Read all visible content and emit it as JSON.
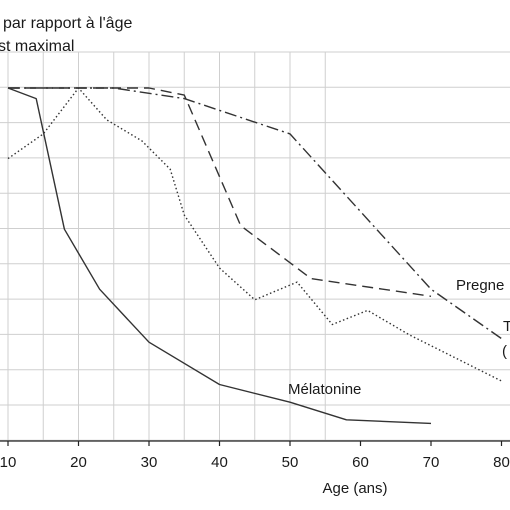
{
  "chart_data": {
    "type": "line",
    "title_lines": [
      "par rapport à l'âge",
      "st maximal"
    ],
    "xlabel": "Age (ans)",
    "xlim": [
      10,
      80
    ],
    "ylim": [
      0,
      100
    ],
    "x_ticks": [
      10,
      20,
      30,
      40,
      50,
      60,
      70,
      80
    ],
    "x_tick_labels": [
      "10",
      "20",
      "30",
      "40",
      "50",
      "60",
      "70",
      "80"
    ],
    "grid": true,
    "series": [
      {
        "name": "Mélatonine",
        "style": "solid",
        "color": "#333333",
        "x": [
          10,
          14,
          18,
          23,
          30,
          40,
          50,
          58,
          70
        ],
        "y": [
          100,
          97,
          60,
          43,
          28,
          16,
          11,
          6,
          5
        ]
      },
      {
        "name": "Pregne",
        "style": "dashed",
        "color": "#333333",
        "x": [
          10,
          30,
          35,
          43,
          53,
          70
        ],
        "y": [
          100,
          100,
          98,
          61,
          46,
          41
        ]
      },
      {
        "name": "T",
        "extra_label": "(",
        "style": "dashdot",
        "color": "#333333",
        "x": [
          10,
          25,
          35,
          50,
          70,
          80
        ],
        "y": [
          100,
          100,
          97,
          87,
          43,
          29
        ]
      },
      {
        "name": "",
        "style": "dotted",
        "color": "#333333",
        "x": [
          10,
          15,
          20,
          24,
          29,
          33,
          35,
          40,
          45,
          51,
          56,
          61,
          67,
          80
        ],
        "y": [
          80,
          87,
          100,
          91,
          85,
          77,
          64,
          49,
          40,
          45,
          33,
          37,
          30,
          17
        ]
      }
    ]
  }
}
